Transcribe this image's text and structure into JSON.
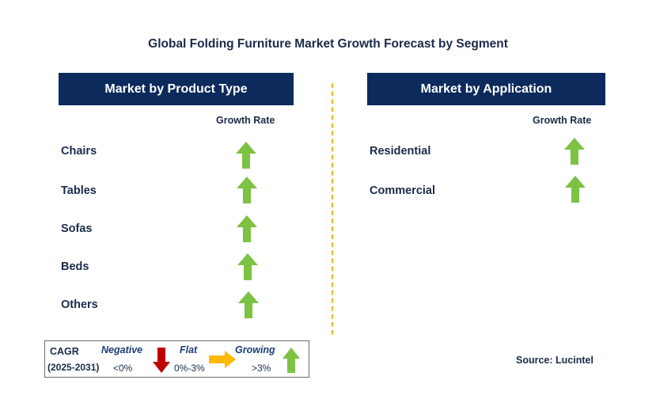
{
  "title": "Global Folding Furniture Market Growth Forecast by Segment",
  "left_panel": {
    "header": "Market by Product Type",
    "growth_rate_label": "Growth Rate",
    "items": [
      {
        "label": "Chairs",
        "trend": "growing"
      },
      {
        "label": "Tables",
        "trend": "growing"
      },
      {
        "label": "Sofas",
        "trend": "growing"
      },
      {
        "label": "Beds",
        "trend": "growing"
      },
      {
        "label": "Others",
        "trend": "growing"
      }
    ]
  },
  "right_panel": {
    "header": "Market by Application",
    "growth_rate_label": "Growth Rate",
    "items": [
      {
        "label": "Residential",
        "trend": "growing"
      },
      {
        "label": "Commercial",
        "trend": "growing"
      }
    ]
  },
  "legend": {
    "cagr": "CAGR",
    "period": "(2025-2031)",
    "negative_label": "Negative",
    "negative_value": "<0%",
    "flat_label": "Flat",
    "flat_value": "0%-3%",
    "growing_label": "Growing",
    "growing_value": ">3%"
  },
  "source": "Source: Lucintel",
  "colors": {
    "header_bg": "#0d2a5c",
    "growing_arrow": "#7cc243",
    "negative_arrow": "#c00000",
    "flat_arrow": "#ffb800",
    "divider": "#f2b51b"
  }
}
